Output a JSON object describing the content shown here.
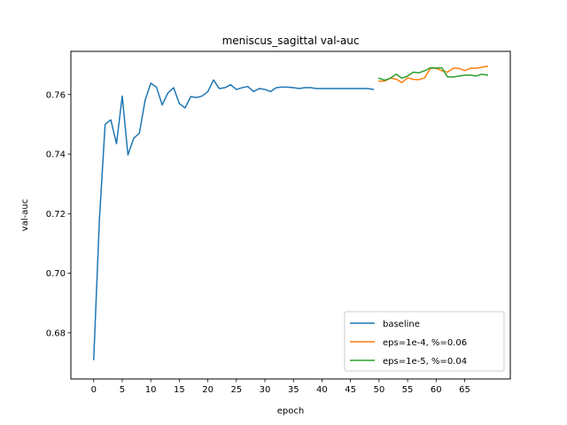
{
  "chart_data": {
    "type": "line",
    "title": "meniscus_sagittal val-auc",
    "xlabel": "epoch",
    "ylabel": "val-auc",
    "xlim": [
      -4,
      73
    ],
    "ylim": [
      0.6645,
      0.7745
    ],
    "xticks": [
      0,
      5,
      10,
      15,
      20,
      25,
      30,
      35,
      40,
      45,
      50,
      55,
      60,
      65
    ],
    "yticks": [
      0.68,
      0.7,
      0.72,
      0.74,
      0.76
    ],
    "ytick_labels": [
      "0.68",
      "0.70",
      "0.72",
      "0.74",
      "0.76"
    ],
    "grid": false,
    "legend_position": "lower-right",
    "series": [
      {
        "name": "baseline",
        "color": "#1f77b4",
        "x": [
          0,
          1,
          2,
          3,
          4,
          5,
          6,
          7,
          8,
          9,
          10,
          11,
          12,
          13,
          14,
          15,
          16,
          17,
          18,
          19,
          20,
          21,
          22,
          23,
          24,
          25,
          26,
          27,
          28,
          29,
          30,
          31,
          32,
          33,
          34,
          35,
          36,
          37,
          38,
          39,
          40,
          41,
          42,
          43,
          44,
          45,
          46,
          47,
          48,
          49
        ],
        "y": [
          0.671,
          0.718,
          0.75,
          0.7515,
          0.7435,
          0.7595,
          0.7397,
          0.7453,
          0.747,
          0.758,
          0.7638,
          0.7625,
          0.7565,
          0.7605,
          0.7623,
          0.757,
          0.7555,
          0.7593,
          0.759,
          0.7595,
          0.761,
          0.7649,
          0.762,
          0.7623,
          0.7633,
          0.7617,
          0.7623,
          0.7627,
          0.761,
          0.762,
          0.7617,
          0.761,
          0.7623,
          0.7625,
          0.7625,
          0.7623,
          0.762,
          0.7623,
          0.7623,
          0.762,
          0.762,
          0.762,
          0.762,
          0.762,
          0.762,
          0.762,
          0.762,
          0.762,
          0.762,
          0.7617
        ]
      },
      {
        "name": "eps=1e-4, %=0.06",
        "color": "#ff7f0e",
        "x": [
          50,
          51,
          52,
          53,
          54,
          55,
          56,
          57,
          58,
          59,
          60,
          61,
          62,
          63,
          64,
          65,
          66,
          67,
          68,
          69
        ],
        "y": [
          0.7645,
          0.7645,
          0.7655,
          0.7652,
          0.764,
          0.7656,
          0.7651,
          0.765,
          0.7656,
          0.7688,
          0.7688,
          0.768,
          0.7675,
          0.7688,
          0.7688,
          0.768,
          0.7688,
          0.7688,
          0.7692,
          0.7695
        ]
      },
      {
        "name": "eps=1e-5, %=0.04",
        "color": "#2ca02c",
        "x": [
          50,
          51,
          52,
          53,
          54,
          55,
          56,
          57,
          58,
          59,
          60,
          61,
          62,
          63,
          64,
          65,
          66,
          67,
          68,
          69
        ],
        "y": [
          0.7655,
          0.7648,
          0.7655,
          0.7668,
          0.7655,
          0.7662,
          0.7675,
          0.7673,
          0.768,
          0.769,
          0.7689,
          0.769,
          0.7659,
          0.7659,
          0.7662,
          0.7665,
          0.7665,
          0.7662,
          0.7668,
          0.7665
        ]
      }
    ]
  }
}
